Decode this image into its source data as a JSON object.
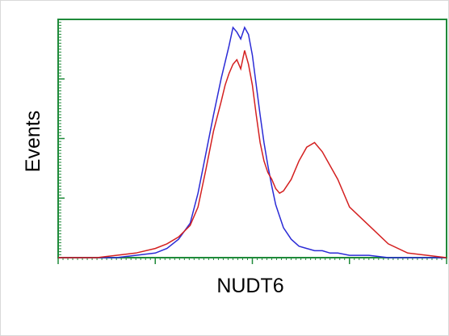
{
  "chart_data": {
    "type": "line",
    "title": "",
    "xlabel": "NUDT6",
    "ylabel": "Events",
    "xlim": [
      0,
      100
    ],
    "ylim": [
      0,
      100
    ],
    "grid": false,
    "legend": "none",
    "colors": {
      "axis": "#1f8a3a",
      "blue_series": "#2b2bd6",
      "red_series": "#d42020"
    },
    "series": [
      {
        "values_x": [
          0,
          10,
          15,
          20,
          25,
          28,
          31,
          34,
          36,
          38,
          40,
          42,
          43,
          44,
          45,
          46,
          47,
          48,
          49,
          50,
          51,
          52,
          53,
          54,
          55,
          56,
          57,
          58,
          60,
          62,
          64,
          66,
          68,
          70,
          72,
          75,
          80,
          85,
          90,
          100
        ],
        "values_y": [
          0,
          0,
          0,
          1,
          2,
          4,
          8,
          15,
          28,
          45,
          62,
          78,
          85,
          92,
          100,
          98,
          95,
          100,
          97,
          88,
          75,
          62,
          50,
          40,
          31,
          23,
          18,
          13,
          8,
          5,
          4,
          3,
          3,
          2,
          2,
          1,
          1,
          0,
          0,
          0
        ]
      },
      {
        "values_x": [
          0,
          10,
          15,
          20,
          25,
          28,
          31,
          34,
          36,
          38,
          40,
          42,
          43,
          44,
          45,
          46,
          47,
          48,
          49,
          50,
          51,
          52,
          53,
          54,
          55,
          56,
          57,
          58,
          60,
          62,
          64,
          66,
          68,
          70,
          72,
          75,
          80,
          85,
          90,
          100
        ],
        "values_y": [
          0,
          0,
          1,
          2,
          4,
          6,
          9,
          14,
          22,
          38,
          55,
          68,
          75,
          80,
          84,
          86,
          82,
          90,
          84,
          75,
          62,
          50,
          42,
          37,
          34,
          30,
          28,
          29,
          34,
          42,
          48,
          50,
          46,
          40,
          34,
          22,
          14,
          6,
          2,
          0
        ]
      }
    ]
  }
}
